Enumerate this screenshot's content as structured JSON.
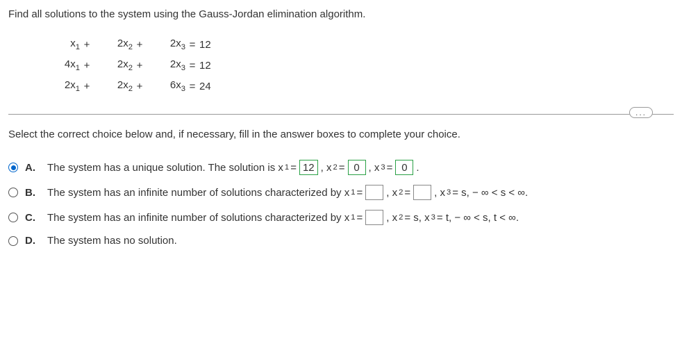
{
  "question": "Find all solutions to the system using the Gauss-Jordan elimination algorithm.",
  "equations": {
    "row1": {
      "t1": "x",
      "sub1": "1",
      "op1": "+",
      "t2": "2x",
      "sub2": "2",
      "op2": "+",
      "t3": "2x",
      "sub3": "3",
      "eq": "=",
      "rhs": "12"
    },
    "row2": {
      "t1": "4x",
      "sub1": "1",
      "op1": "+",
      "t2": "2x",
      "sub2": "2",
      "op2": "+",
      "t3": "2x",
      "sub3": "3",
      "eq": "=",
      "rhs": "12"
    },
    "row3": {
      "t1": "2x",
      "sub1": "1",
      "op1": "+",
      "t2": "2x",
      "sub2": "2",
      "op2": "+",
      "t3": "6x",
      "sub3": "3",
      "eq": "=",
      "rhs": "24"
    }
  },
  "ellipsis": "...",
  "prompt": "Select the correct choice below and, if necessary, fill in the answer boxes to complete your choice.",
  "choices": {
    "a": {
      "label": "A.",
      "pre": "The system has a unique solution. The solution is x",
      "sub1": "1",
      "mid1": " = ",
      "val1": "12",
      "mid2": ", x",
      "sub2": "2",
      "mid3": " = ",
      "val2": "0",
      "mid4": ", x",
      "sub3": "3",
      "mid5": " = ",
      "val3": "0",
      "post": "."
    },
    "b": {
      "label": "B.",
      "pre": "The system has an infinite number of solutions characterized by x",
      "sub1": "1",
      "mid1": " = ",
      "mid2": ", x",
      "sub2": "2",
      "mid3": " = ",
      "mid4": ", x",
      "sub3": "3",
      "post": " = s,  − ∞ < s < ∞."
    },
    "c": {
      "label": "C.",
      "pre": "The system has an infinite number of solutions characterized by x",
      "sub1": "1",
      "mid1": " = ",
      "mid2": ", x",
      "sub2": "2",
      "post": " = s, x",
      "sub3": "3",
      "post2": " = t,  − ∞ < s, t < ∞."
    },
    "d": {
      "label": "D.",
      "text": "The system has no solution."
    }
  }
}
